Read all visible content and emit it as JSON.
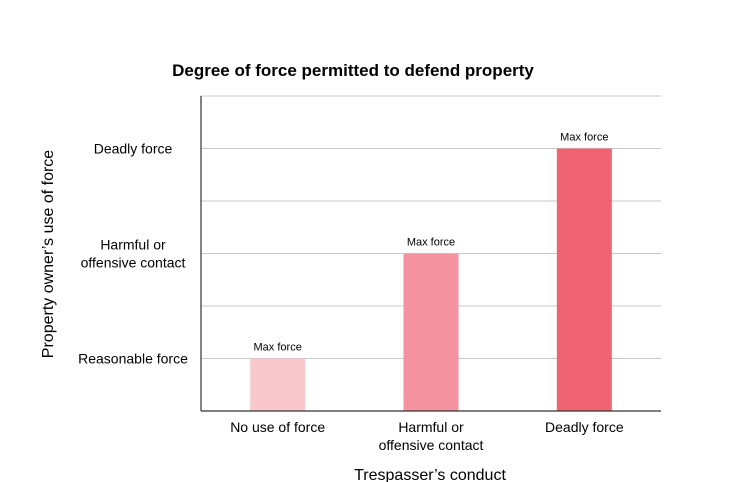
{
  "chart_data": {
    "type": "bar",
    "title": "Degree of force permitted to defend property",
    "xlabel": "Trespasser’s conduct",
    "ylabel": "Property owner’s use of force",
    "categories": [
      [
        "No use of force"
      ],
      [
        "Harmful or",
        "offensive contact"
      ],
      [
        "Deadly force"
      ]
    ],
    "values": [
      1,
      2,
      3
    ],
    "data_labels": [
      "Max force",
      "Max force",
      "Max force"
    ],
    "y_ticks": [
      {
        "value": 1,
        "label": [
          "Reasonable force"
        ]
      },
      {
        "value": 2,
        "label": [
          "Harmful or",
          "offensive contact"
        ]
      },
      {
        "value": 3,
        "label": [
          "Deadly force"
        ]
      }
    ],
    "ylim": [
      0.5,
      3.5
    ],
    "grid": true,
    "bar_colors": [
      "#f9c8cd",
      "#f4939f",
      "#f06373"
    ],
    "grid_color": "#c8c8c8",
    "axis_color": "#333333"
  }
}
